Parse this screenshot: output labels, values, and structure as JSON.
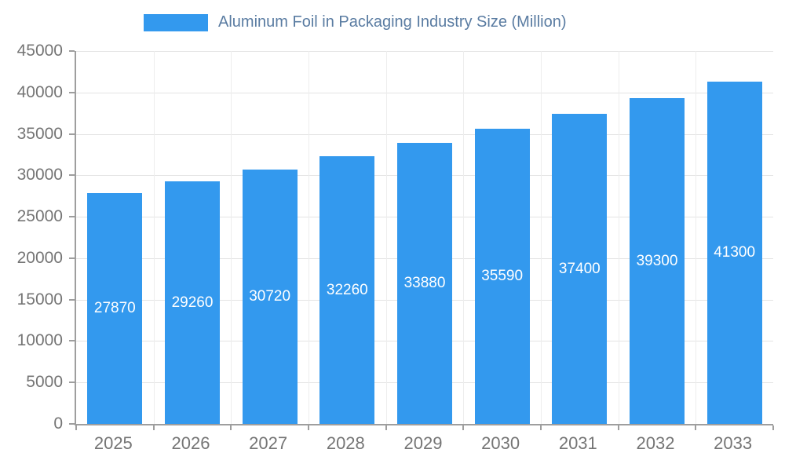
{
  "chart_data": {
    "type": "bar",
    "title": "Aluminum Foil in Packaging Industry Size (Million)",
    "categories": [
      "2025",
      "2026",
      "2027",
      "2028",
      "2029",
      "2030",
      "2031",
      "2032",
      "2033"
    ],
    "values": [
      27870,
      29260,
      30720,
      32260,
      33880,
      35590,
      37400,
      39300,
      41300
    ],
    "xlabel": "",
    "ylabel": "",
    "ylim": [
      0,
      45000
    ],
    "yticks": [
      0,
      5000,
      10000,
      15000,
      20000,
      25000,
      30000,
      35000,
      40000,
      45000
    ],
    "grid": true,
    "legend_position": "top",
    "colors": {
      "bar": "#3399ee",
      "bar_label": "#ffffff",
      "axis_text": "#757575",
      "title_text": "#5a7ca2",
      "axis_line": "#9e9e9e",
      "gridline": "#e4e4e4"
    }
  }
}
